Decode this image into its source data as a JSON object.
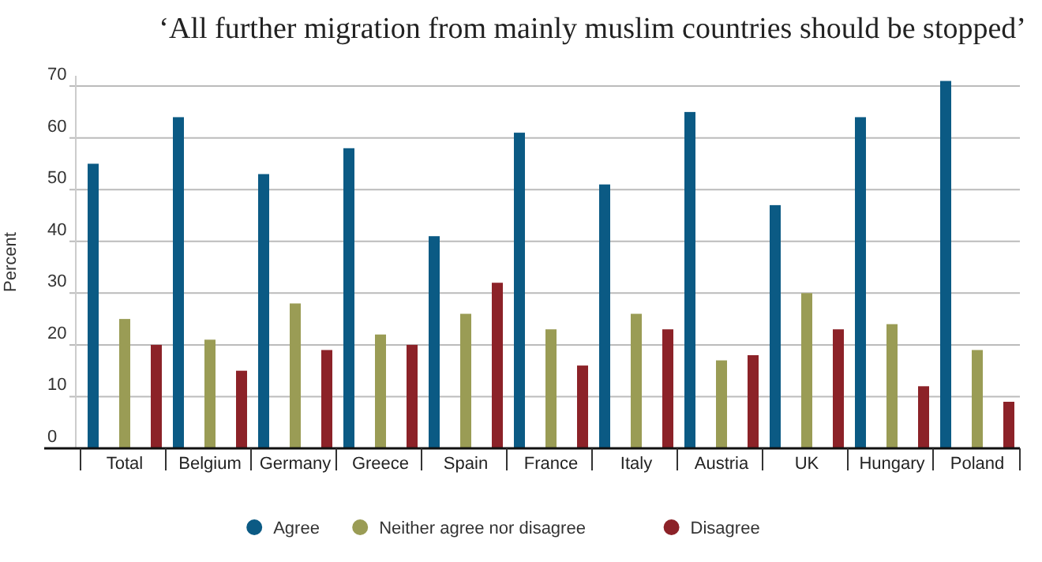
{
  "chart_data": {
    "type": "bar",
    "title": "‘All further migration from mainly muslim countries should be stopped’",
    "ylabel": "Percent",
    "categories": [
      "Total",
      "Belgium",
      "Germany",
      "Greece",
      "Spain",
      "France",
      "Italy",
      "Austria",
      "UK",
      "Hungary",
      "Poland"
    ],
    "series": [
      {
        "name": "Agree",
        "color": "#0b5a84",
        "values": [
          55,
          64,
          53,
          58,
          41,
          61,
          51,
          65,
          47,
          64,
          71
        ]
      },
      {
        "name": "Neither agree nor disagree",
        "color": "#9a9c55",
        "values": [
          25,
          21,
          28,
          22,
          26,
          23,
          26,
          17,
          30,
          24,
          19
        ]
      },
      {
        "name": "Disagree",
        "color": "#8c2228",
        "values": [
          20,
          15,
          19,
          20,
          32,
          16,
          23,
          18,
          23,
          12,
          9
        ]
      }
    ],
    "ylim": [
      0,
      72
    ],
    "yticks": [
      0,
      10,
      20,
      30,
      40,
      50,
      60,
      70
    ],
    "grid": "y",
    "legend": "bottom"
  }
}
